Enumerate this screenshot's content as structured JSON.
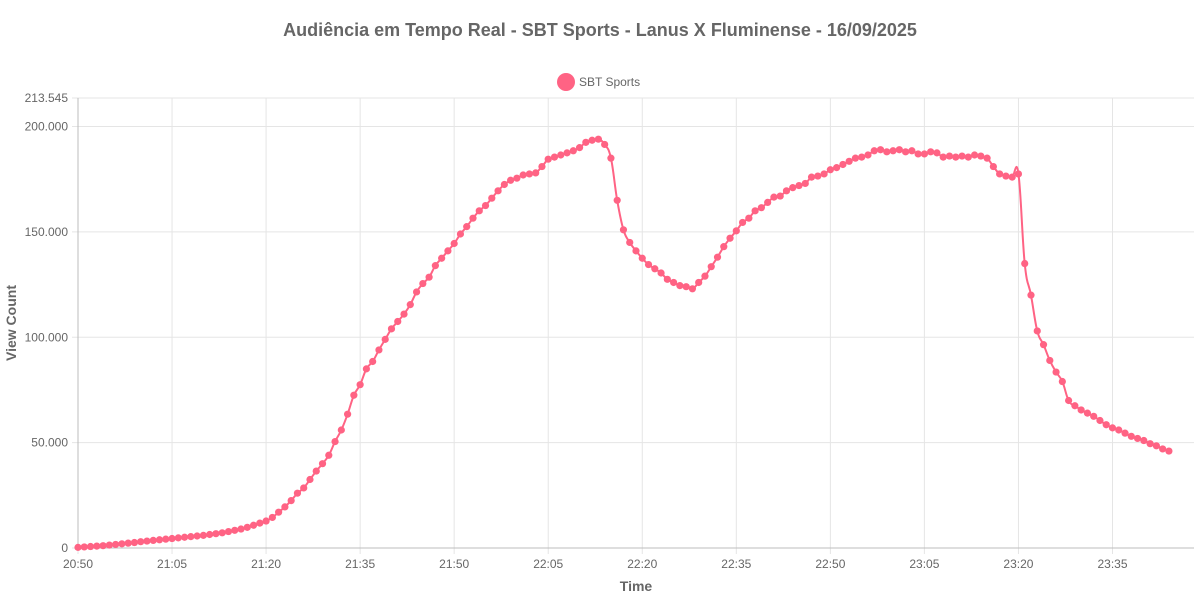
{
  "chart_data": {
    "type": "line",
    "title": "Audiência em Tempo Real - SBT Sports - Lanus X Fluminense - 16/09/2025",
    "xlabel": "Time",
    "ylabel": "View Count",
    "ylim": [
      0,
      213545
    ],
    "y_ticks": [
      {
        "value": 0,
        "label": "0"
      },
      {
        "value": 50000,
        "label": "50.000"
      },
      {
        "value": 100000,
        "label": "100.000"
      },
      {
        "value": 150000,
        "label": "150.000"
      },
      {
        "value": 200000,
        "label": "200.000"
      },
      {
        "value": 213545,
        "label": "213.545"
      }
    ],
    "x_ticks": [
      "20:50",
      "21:05",
      "21:20",
      "21:35",
      "21:50",
      "22:05",
      "22:20",
      "22:35",
      "22:50",
      "23:05",
      "23:20",
      "23:35"
    ],
    "x_start": "20:50",
    "x_end": "23:48",
    "grid": true,
    "legend_position": "top-center",
    "series": [
      {
        "name": "SBT Sports",
        "color": "#ff6384",
        "points": [
          [
            "20:50",
            300
          ],
          [
            "20:51",
            500
          ],
          [
            "20:52",
            700
          ],
          [
            "20:53",
            900
          ],
          [
            "20:54",
            1100
          ],
          [
            "20:55",
            1400
          ],
          [
            "20:56",
            1700
          ],
          [
            "20:57",
            2000
          ],
          [
            "20:58",
            2300
          ],
          [
            "20:59",
            2600
          ],
          [
            "21:00",
            3000
          ],
          [
            "21:01",
            3300
          ],
          [
            "21:02",
            3600
          ],
          [
            "21:03",
            3900
          ],
          [
            "21:04",
            4200
          ],
          [
            "21:05",
            4500
          ],
          [
            "21:06",
            4800
          ],
          [
            "21:07",
            5100
          ],
          [
            "21:08",
            5400
          ],
          [
            "21:09",
            5700
          ],
          [
            "21:10",
            6000
          ],
          [
            "21:11",
            6400
          ],
          [
            "21:12",
            6800
          ],
          [
            "21:13",
            7200
          ],
          [
            "21:14",
            7800
          ],
          [
            "21:15",
            8400
          ],
          [
            "21:16",
            9000
          ],
          [
            "21:17",
            9800
          ],
          [
            "21:18",
            10800
          ],
          [
            "21:19",
            11800
          ],
          [
            "21:20",
            12800
          ],
          [
            "21:21",
            14500
          ],
          [
            "21:22",
            17000
          ],
          [
            "21:23",
            19500
          ],
          [
            "21:24",
            22500
          ],
          [
            "21:25",
            26000
          ],
          [
            "21:26",
            28500
          ],
          [
            "21:27",
            32500
          ],
          [
            "21:28",
            36500
          ],
          [
            "21:29",
            40000
          ],
          [
            "21:30",
            44000
          ],
          [
            "21:31",
            50500
          ],
          [
            "21:32",
            56000
          ],
          [
            "21:33",
            63500
          ],
          [
            "21:34",
            72500
          ],
          [
            "21:35",
            77500
          ],
          [
            "21:36",
            85000
          ],
          [
            "21:37",
            88500
          ],
          [
            "21:38",
            94000
          ],
          [
            "21:39",
            99000
          ],
          [
            "21:40",
            104000
          ],
          [
            "21:41",
            107500
          ],
          [
            "21:42",
            111000
          ],
          [
            "21:43",
            115500
          ],
          [
            "21:44",
            121500
          ],
          [
            "21:45",
            125500
          ],
          [
            "21:46",
            128500
          ],
          [
            "21:47",
            134000
          ],
          [
            "21:48",
            137500
          ],
          [
            "21:49",
            141000
          ],
          [
            "21:50",
            144500
          ],
          [
            "21:51",
            149000
          ],
          [
            "21:52",
            152500
          ],
          [
            "21:53",
            156500
          ],
          [
            "21:54",
            160000
          ],
          [
            "21:55",
            162500
          ],
          [
            "21:56",
            166000
          ],
          [
            "21:57",
            169500
          ],
          [
            "21:58",
            172500
          ],
          [
            "21:59",
            174500
          ],
          [
            "22:00",
            175500
          ],
          [
            "22:01",
            177000
          ],
          [
            "22:02",
            177500
          ],
          [
            "22:03",
            178000
          ],
          [
            "22:04",
            181000
          ],
          [
            "22:05",
            184500
          ],
          [
            "22:06",
            185500
          ],
          [
            "22:07",
            186500
          ],
          [
            "22:08",
            187500
          ],
          [
            "22:09",
            188500
          ],
          [
            "22:10",
            190000
          ],
          [
            "22:11",
            192500
          ],
          [
            "22:12",
            193500
          ],
          [
            "22:13",
            194000
          ],
          [
            "22:14",
            191500
          ],
          [
            "22:15",
            185000
          ],
          [
            "22:16",
            165000
          ],
          [
            "22:17",
            151000
          ],
          [
            "22:18",
            145000
          ],
          [
            "22:19",
            141000
          ],
          [
            "22:20",
            137500
          ],
          [
            "22:21",
            134500
          ],
          [
            "22:22",
            132500
          ],
          [
            "22:23",
            130500
          ],
          [
            "22:24",
            127500
          ],
          [
            "22:25",
            126000
          ],
          [
            "22:26",
            124500
          ],
          [
            "22:27",
            124000
          ],
          [
            "22:28",
            123000
          ],
          [
            "22:29",
            126000
          ],
          [
            "22:30",
            129000
          ],
          [
            "22:31",
            133500
          ],
          [
            "22:32",
            138000
          ],
          [
            "22:33",
            143000
          ],
          [
            "22:34",
            147000
          ],
          [
            "22:35",
            150500
          ],
          [
            "22:36",
            154500
          ],
          [
            "22:37",
            156500
          ],
          [
            "22:38",
            160000
          ],
          [
            "22:39",
            161500
          ],
          [
            "22:40",
            164000
          ],
          [
            "22:41",
            166500
          ],
          [
            "22:42",
            167000
          ],
          [
            "22:43",
            169500
          ],
          [
            "22:44",
            171000
          ],
          [
            "22:45",
            172000
          ],
          [
            "22:46",
            173000
          ],
          [
            "22:47",
            176000
          ],
          [
            "22:48",
            176500
          ],
          [
            "22:49",
            177500
          ],
          [
            "22:50",
            179500
          ],
          [
            "22:51",
            180500
          ],
          [
            "22:52",
            182000
          ],
          [
            "22:53",
            183500
          ],
          [
            "22:54",
            185000
          ],
          [
            "22:55",
            185500
          ],
          [
            "22:56",
            186500
          ],
          [
            "22:57",
            188500
          ],
          [
            "22:58",
            189000
          ],
          [
            "22:59",
            188000
          ],
          [
            "23:00",
            188500
          ],
          [
            "23:01",
            189000
          ],
          [
            "23:02",
            188000
          ],
          [
            "23:03",
            188500
          ],
          [
            "23:04",
            187000
          ],
          [
            "23:05",
            187000
          ],
          [
            "23:06",
            188000
          ],
          [
            "23:07",
            187500
          ],
          [
            "23:08",
            185500
          ],
          [
            "23:09",
            186000
          ],
          [
            "23:10",
            185500
          ],
          [
            "23:11",
            186000
          ],
          [
            "23:12",
            185500
          ],
          [
            "23:13",
            186500
          ],
          [
            "23:14",
            186000
          ],
          [
            "23:15",
            185000
          ],
          [
            "23:16",
            181000
          ],
          [
            "23:17",
            177500
          ],
          [
            "23:18",
            176500
          ],
          [
            "23:19",
            176000
          ],
          [
            "23:20",
            177500
          ],
          [
            "23:21",
            135000
          ],
          [
            "23:22",
            120000
          ],
          [
            "23:23",
            103000
          ],
          [
            "23:24",
            96500
          ],
          [
            "23:25",
            89000
          ],
          [
            "23:26",
            83500
          ],
          [
            "23:27",
            79000
          ],
          [
            "23:28",
            70000
          ],
          [
            "23:29",
            67500
          ],
          [
            "23:30",
            65500
          ],
          [
            "23:31",
            64000
          ],
          [
            "23:32",
            62500
          ],
          [
            "23:33",
            60500
          ],
          [
            "23:34",
            58500
          ],
          [
            "23:35",
            57000
          ],
          [
            "23:36",
            56000
          ],
          [
            "23:37",
            54500
          ],
          [
            "23:38",
            53000
          ],
          [
            "23:39",
            52000
          ],
          [
            "23:40",
            51000
          ],
          [
            "23:41",
            49500
          ],
          [
            "23:42",
            48500
          ],
          [
            "23:43",
            47000
          ],
          [
            "23:44",
            46000
          ]
        ]
      }
    ]
  }
}
